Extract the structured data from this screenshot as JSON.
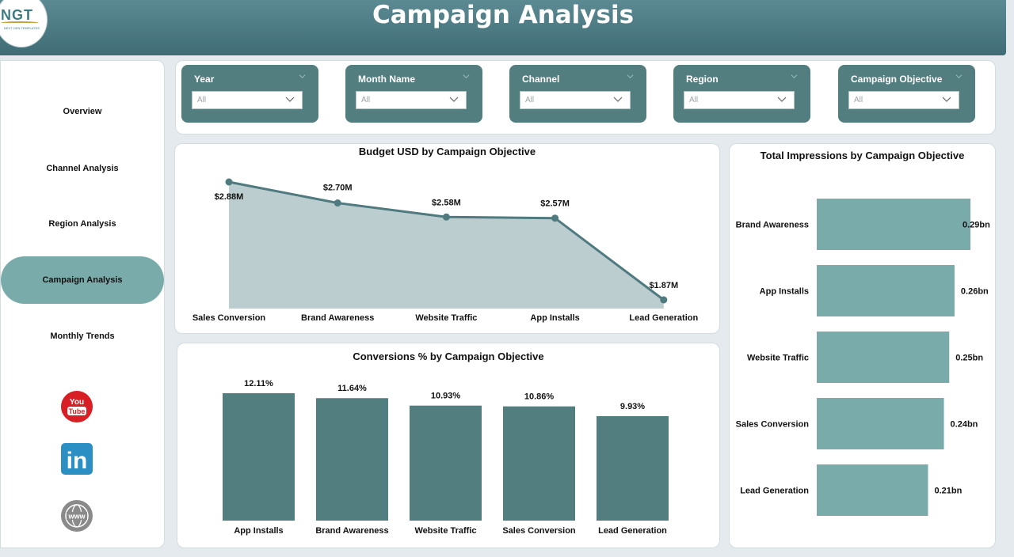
{
  "header": {
    "title": "Campaign Analysis",
    "logo_text": "NGT",
    "logo_sub": "NEXT GEN TEMPLATES"
  },
  "sidebar": {
    "items": [
      {
        "label": "Overview"
      },
      {
        "label": "Channel Analysis"
      },
      {
        "label": "Region Analysis"
      },
      {
        "label": "Campaign Analysis",
        "active": true
      },
      {
        "label": "Monthly Trends"
      }
    ],
    "social": [
      {
        "icon": "youtube-icon",
        "text_top": "You",
        "text_bottom": "Tube"
      },
      {
        "icon": "linkedin-icon",
        "text": "in"
      },
      {
        "icon": "globe-icon",
        "text": "www"
      }
    ]
  },
  "filters": [
    {
      "title": "Year",
      "value": "All"
    },
    {
      "title": "Month Name",
      "value": "All"
    },
    {
      "title": "Channel",
      "value": "All"
    },
    {
      "title": "Region",
      "value": "All"
    },
    {
      "title": "Campaign Objective",
      "value": "All"
    }
  ],
  "colors": {
    "accent": "#527e80",
    "area_fill": "#bccdd0",
    "line": "#4f7a7f",
    "bar_dark": "#527e80",
    "bar_light": "#7aabab",
    "nav_active": "#7aabab"
  },
  "chart_data": [
    {
      "type": "area",
      "title": "Budget USD by Campaign Objective",
      "categories": [
        "Sales Conversion",
        "Brand Awareness",
        "Website Traffic",
        "App Installs",
        "Lead Generation"
      ],
      "values": [
        2.88,
        2.7,
        2.58,
        2.57,
        1.87
      ],
      "labels": [
        "$2.88M",
        "$2.70M",
        "$2.58M",
        "$2.57M",
        "$1.87M"
      ],
      "ylim": [
        1.87,
        2.88
      ]
    },
    {
      "type": "bar",
      "title": "Conversions % by Campaign Objective",
      "categories": [
        "App Installs",
        "Brand Awareness",
        "Website Traffic",
        "Sales Conversion",
        "Lead Generation"
      ],
      "values": [
        12.11,
        11.64,
        10.93,
        10.86,
        9.93
      ],
      "labels": [
        "12.11%",
        "11.64%",
        "10.93%",
        "10.86%",
        "9.93%"
      ],
      "ylim": [
        0,
        12.11
      ]
    },
    {
      "type": "bar",
      "orientation": "horizontal",
      "title": "Total Impressions by Campaign Objective",
      "categories": [
        "Brand Awareness",
        "App Installs",
        "Website Traffic",
        "Sales Conversion",
        "Lead Generation"
      ],
      "values": [
        0.29,
        0.26,
        0.25,
        0.24,
        0.21
      ],
      "labels": [
        "0.29bn",
        "0.26bn",
        "0.25bn",
        "0.24bn",
        "0.21bn"
      ],
      "xlim": [
        0,
        0.29
      ]
    }
  ]
}
